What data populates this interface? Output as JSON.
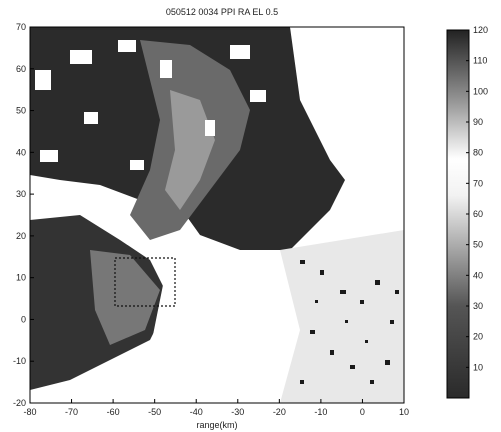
{
  "chart_data": {
    "type": "heatmap",
    "title": "050512 0034  PPI  RA   EL 0.5",
    "xlabel": "range(km)",
    "ylabel": "",
    "xlim": [
      -80,
      10
    ],
    "ylim": [
      -20,
      70
    ],
    "xticks": [
      -80,
      -70,
      -60,
      -50,
      -40,
      -30,
      -20,
      -10,
      0,
      10
    ],
    "yticks": [
      -20,
      -10,
      0,
      10,
      20,
      30,
      40,
      50,
      60,
      70
    ],
    "colorbar": {
      "min": 0,
      "max": 120,
      "ticks": [
        10,
        20,
        30,
        40,
        50,
        60,
        70,
        80,
        90,
        100,
        110,
        120
      ],
      "colormap": "grayscale (dark at low and high, light near 60-80)"
    },
    "grid": false,
    "legend": "none"
  }
}
